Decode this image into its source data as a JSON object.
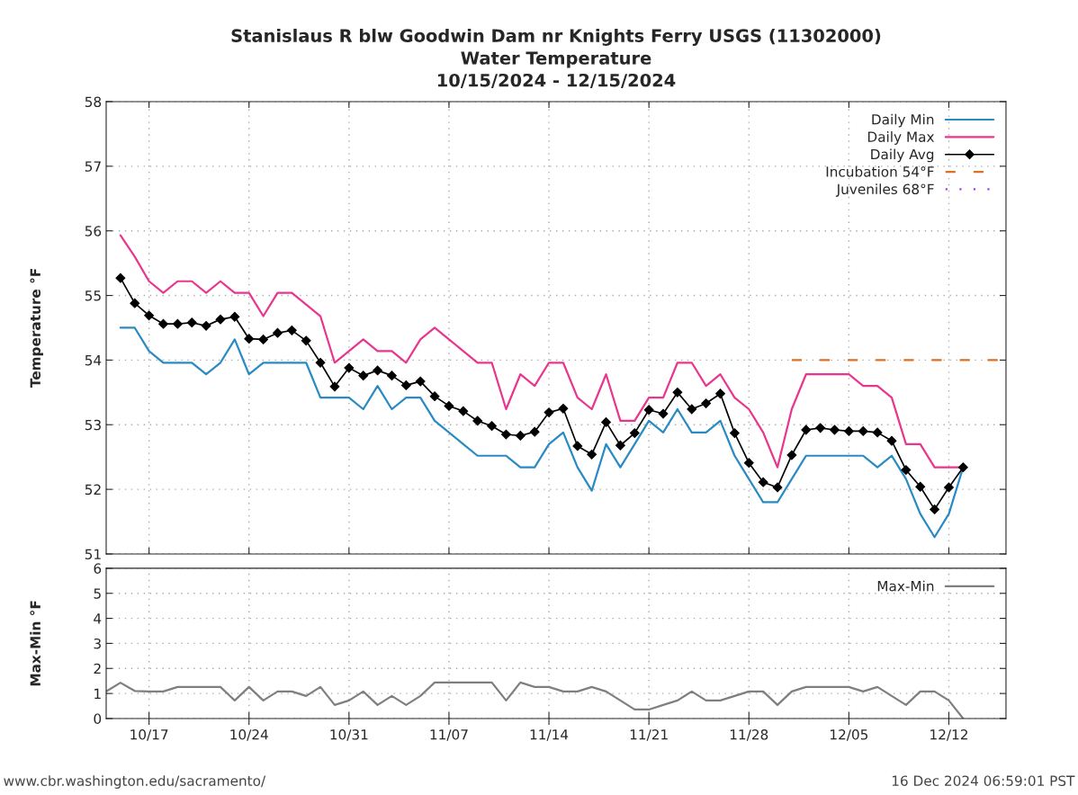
{
  "chart_data": [
    {
      "type": "line",
      "title": "Stanislaus R blw Goodwin Dam nr Knights Ferry USGS (11302000)\nWater Temperature\n10/15/2024 - 12/15/2024",
      "ylabel": "Temperature °F",
      "x": [
        "2024-10-15",
        "2024-10-16",
        "2024-10-17",
        "2024-10-18",
        "2024-10-19",
        "2024-10-20",
        "2024-10-21",
        "2024-10-22",
        "2024-10-23",
        "2024-10-24",
        "2024-10-25",
        "2024-10-26",
        "2024-10-27",
        "2024-10-28",
        "2024-10-29",
        "2024-10-30",
        "2024-10-31",
        "2024-11-01",
        "2024-11-02",
        "2024-11-03",
        "2024-11-04",
        "2024-11-05",
        "2024-11-06",
        "2024-11-07",
        "2024-11-08",
        "2024-11-09",
        "2024-11-10",
        "2024-11-11",
        "2024-11-12",
        "2024-11-13",
        "2024-11-14",
        "2024-11-15",
        "2024-11-16",
        "2024-11-17",
        "2024-11-18",
        "2024-11-19",
        "2024-11-20",
        "2024-11-21",
        "2024-11-22",
        "2024-11-23",
        "2024-11-24",
        "2024-11-25",
        "2024-11-26",
        "2024-11-27",
        "2024-11-28",
        "2024-11-29",
        "2024-11-30",
        "2024-12-01",
        "2024-12-02",
        "2024-12-03",
        "2024-12-04",
        "2024-12-05",
        "2024-12-06",
        "2024-12-07",
        "2024-12-08",
        "2024-12-09",
        "2024-12-10",
        "2024-12-11",
        "2024-12-12",
        "2024-12-13"
      ],
      "series": [
        {
          "name": "Daily Min",
          "color": "#2a8ac4",
          "values": [
            54.5,
            54.5,
            54.14,
            53.96,
            53.96,
            53.96,
            53.78,
            53.96,
            54.32,
            53.78,
            53.96,
            53.96,
            53.96,
            53.96,
            53.42,
            53.42,
            53.42,
            53.24,
            53.6,
            53.24,
            53.42,
            53.42,
            53.06,
            52.88,
            52.7,
            52.52,
            52.52,
            52.52,
            52.34,
            52.34,
            52.7,
            52.88,
            52.34,
            51.98,
            52.7,
            52.34,
            52.7,
            53.06,
            52.88,
            53.24,
            52.88,
            52.88,
            53.06,
            52.52,
            52.16,
            51.8,
            51.8,
            52.16,
            52.52,
            52.52,
            52.52,
            52.52,
            52.52,
            52.34,
            52.52,
            52.16,
            51.62,
            51.26,
            51.62,
            52.34
          ]
        },
        {
          "name": "Daily Max",
          "color": "#e8368f",
          "values": [
            55.93,
            55.6,
            55.22,
            55.04,
            55.22,
            55.22,
            55.04,
            55.22,
            55.04,
            55.04,
            54.68,
            55.04,
            55.04,
            54.86,
            54.68,
            53.96,
            54.14,
            54.32,
            54.14,
            54.14,
            53.96,
            54.32,
            54.5,
            54.32,
            54.14,
            53.96,
            53.96,
            53.24,
            53.78,
            53.6,
            53.96,
            53.96,
            53.42,
            53.24,
            53.78,
            53.06,
            53.06,
            53.42,
            53.42,
            53.96,
            53.96,
            53.6,
            53.78,
            53.42,
            53.24,
            52.88,
            52.34,
            53.24,
            53.78,
            53.78,
            53.78,
            53.78,
            53.6,
            53.6,
            53.42,
            52.7,
            52.7,
            52.34,
            52.34,
            52.34
          ]
        },
        {
          "name": "Daily Avg",
          "color": "#000000",
          "marker": "diamond",
          "values": [
            55.27,
            54.88,
            54.69,
            54.56,
            54.56,
            54.58,
            54.53,
            54.63,
            54.67,
            54.33,
            54.32,
            54.42,
            54.46,
            54.3,
            53.96,
            53.59,
            53.88,
            53.76,
            53.84,
            53.76,
            53.61,
            53.67,
            53.44,
            53.29,
            53.21,
            53.06,
            52.98,
            52.85,
            52.83,
            52.89,
            53.19,
            53.25,
            52.67,
            52.54,
            53.04,
            52.68,
            52.87,
            53.23,
            53.17,
            53.5,
            53.24,
            53.33,
            53.48,
            52.87,
            52.41,
            52.11,
            52.03,
            52.53,
            52.92,
            52.95,
            52.92,
            52.9,
            52.9,
            52.88,
            52.75,
            52.3,
            52.04,
            51.69,
            52.03,
            52.34
          ]
        },
        {
          "name": "Incubation 54°F",
          "color": "#e07020",
          "line_style": "dashed",
          "x": [
            "2024-12-01",
            "2024-12-16"
          ],
          "values": [
            54,
            54
          ]
        },
        {
          "name": "Juveniles 68°F",
          "color": "#a040e0",
          "line_style": "dotted",
          "values": [
            null,
            null,
            null,
            null,
            null,
            null,
            null,
            null,
            null,
            null,
            null,
            null,
            null,
            null,
            null,
            null,
            null,
            null,
            null,
            null,
            null,
            null,
            null,
            null,
            null,
            null,
            null,
            null,
            null,
            null,
            null,
            null,
            null,
            null,
            null,
            null,
            null,
            null,
            null,
            null,
            null,
            null,
            null,
            null,
            null,
            null,
            null,
            null,
            null,
            null,
            null,
            null,
            null,
            null,
            null,
            null,
            null,
            null,
            null,
            null
          ]
        }
      ],
      "xlim": [
        "2024-10-14",
        "2024-12-16"
      ],
      "xticks": [
        {
          "value": "2024-10-17",
          "label": null
        },
        {
          "value": "2024-10-24",
          "label": null
        },
        {
          "value": "2024-10-31",
          "label": null
        },
        {
          "value": "2024-11-07",
          "label": null
        },
        {
          "value": "2024-11-14",
          "label": null
        },
        {
          "value": "2024-11-21",
          "label": null
        },
        {
          "value": "2024-11-28",
          "label": null
        },
        {
          "value": "2024-12-05",
          "label": null
        },
        {
          "value": "2024-12-12",
          "label": null
        }
      ],
      "ylim": [
        51,
        58
      ],
      "yticks": [
        51,
        52,
        53,
        54,
        55,
        56,
        57,
        58
      ],
      "tick_labels": "y",
      "grid": true,
      "legend": "top right"
    },
    {
      "type": "line",
      "ylabel": "Max-Min °F",
      "x": [
        "2024-10-14",
        "2024-10-15",
        "2024-10-16",
        "2024-10-17",
        "2024-10-18",
        "2024-10-19",
        "2024-10-20",
        "2024-10-21",
        "2024-10-22",
        "2024-10-23",
        "2024-10-24",
        "2024-10-25",
        "2024-10-26",
        "2024-10-27",
        "2024-10-28",
        "2024-10-29",
        "2024-10-30",
        "2024-10-31",
        "2024-11-01",
        "2024-11-02",
        "2024-11-03",
        "2024-11-04",
        "2024-11-05",
        "2024-11-06",
        "2024-11-07",
        "2024-11-08",
        "2024-11-09",
        "2024-11-10",
        "2024-11-11",
        "2024-11-12",
        "2024-11-13",
        "2024-11-14",
        "2024-11-15",
        "2024-11-16",
        "2024-11-17",
        "2024-11-18",
        "2024-11-19",
        "2024-11-20",
        "2024-11-21",
        "2024-11-22",
        "2024-11-23",
        "2024-11-24",
        "2024-11-25",
        "2024-11-26",
        "2024-11-27",
        "2024-11-28",
        "2024-11-29",
        "2024-11-30",
        "2024-12-01",
        "2024-12-02",
        "2024-12-03",
        "2024-12-04",
        "2024-12-05",
        "2024-12-06",
        "2024-12-07",
        "2024-12-08",
        "2024-12-09",
        "2024-12-10",
        "2024-12-11",
        "2024-12-12",
        "2024-12-13"
      ],
      "series": [
        {
          "name": "Max-Min",
          "color": "#7f7f7f",
          "values": [
            1.08,
            1.43,
            1.1,
            1.08,
            1.08,
            1.26,
            1.26,
            1.26,
            1.26,
            0.72,
            1.26,
            0.72,
            1.08,
            1.08,
            0.9,
            1.26,
            0.54,
            0.72,
            1.08,
            0.54,
            0.9,
            0.54,
            0.9,
            1.44,
            1.44,
            1.44,
            1.44,
            1.44,
            0.72,
            1.44,
            1.26,
            1.26,
            1.08,
            1.08,
            1.26,
            1.08,
            0.72,
            0.36,
            0.36,
            0.54,
            0.72,
            1.08,
            0.72,
            0.72,
            0.9,
            1.08,
            1.08,
            0.54,
            1.08,
            1.26,
            1.26,
            1.26,
            1.26,
            1.08,
            1.26,
            0.9,
            0.54,
            1.08,
            1.08,
            0.72,
            0
          ]
        }
      ],
      "xlim": [
        "2024-10-14",
        "2024-12-16"
      ],
      "xticks": [
        {
          "value": "2024-10-17",
          "label": "10/17"
        },
        {
          "value": "2024-10-24",
          "label": "10/24"
        },
        {
          "value": "2024-10-31",
          "label": "10/31"
        },
        {
          "value": "2024-11-07",
          "label": "11/07"
        },
        {
          "value": "2024-11-14",
          "label": "11/14"
        },
        {
          "value": "2024-11-21",
          "label": "11/21"
        },
        {
          "value": "2024-11-28",
          "label": "11/28"
        },
        {
          "value": "2024-12-05",
          "label": "12/05"
        },
        {
          "value": "2024-12-12",
          "label": "12/12"
        }
      ],
      "ylim": [
        0,
        6
      ],
      "yticks": [
        0,
        1,
        2,
        3,
        4,
        5,
        6
      ],
      "grid": true,
      "legend": "top right",
      "annotations": [
        "www.cbr.washington.edu/sacramento/",
        "16 Dec 2024 06:59:01 PST"
      ]
    }
  ]
}
